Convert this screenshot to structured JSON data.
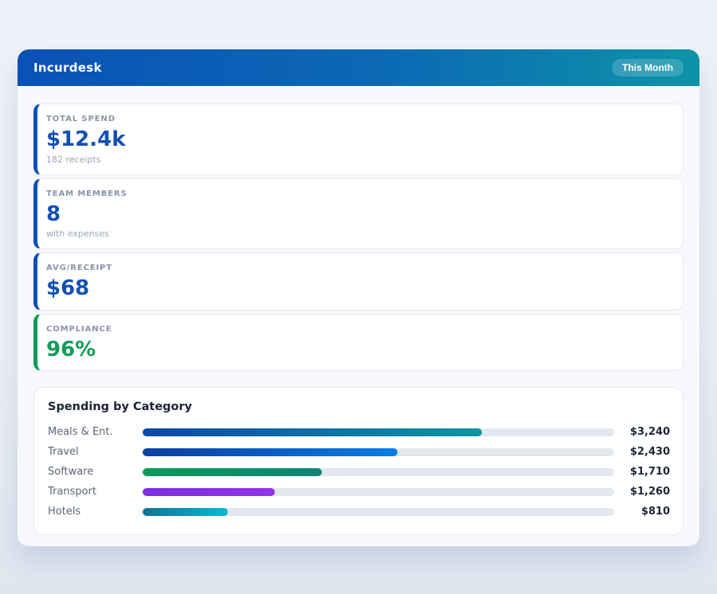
{
  "header": {
    "title": "Incurdesk",
    "badge": "This Month",
    "gradient_from": "#0a51b7",
    "gradient_to": "#0d93a8"
  },
  "stats": [
    {
      "label": "TOTAL SPEND",
      "value": "$12.4k",
      "sub": "182 receipts",
      "accent": "#0b51b8",
      "value_color": "#1350b4"
    },
    {
      "label": "TEAM MEMBERS",
      "value": "8",
      "sub": "with expenses",
      "accent": "#0b51b8",
      "value_color": "#1350b4"
    },
    {
      "label": "AVG/RECEIPT",
      "value": "$68",
      "sub": "",
      "accent": "#0b51b8",
      "value_color": "#1350b4"
    },
    {
      "label": "COMPLIANCE",
      "value": "96%",
      "sub": "",
      "accent": "#0a9b57",
      "value_color": "#0f9d58"
    }
  ],
  "chart_data": {
    "type": "bar",
    "orientation": "horizontal",
    "title": "Spending by Category",
    "categories": [
      "Meals & Ent.",
      "Travel",
      "Software",
      "Transport",
      "Hotels"
    ],
    "values": [
      3240,
      2430,
      1710,
      1260,
      810
    ],
    "value_labels": [
      "$3,240",
      "$2,430",
      "$1,710",
      "$1,260",
      "$810"
    ],
    "xlim": [
      0,
      4500
    ],
    "grid": false,
    "legend": "none",
    "track_color": "#e3e8ef",
    "bar_gradients": [
      [
        "#0b47ab",
        "#0e96a3"
      ],
      [
        "#0a3f9e",
        "#0c7ce4"
      ],
      [
        "#0a9b57",
        "#0e8577"
      ],
      [
        "#7c2fe0",
        "#9333ea"
      ],
      [
        "#0e7490",
        "#08b8d4"
      ]
    ]
  }
}
